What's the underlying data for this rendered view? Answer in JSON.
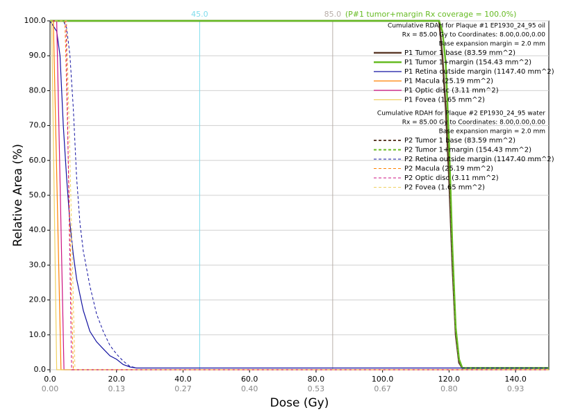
{
  "chart_data": {
    "type": "line",
    "xlabel": "Dose (Gy)",
    "ylabel": "Relative Area (%)",
    "xlim": [
      0,
      150
    ],
    "ylim": [
      0,
      100
    ],
    "xticks": [
      {
        "value": 0,
        "label": "0.0"
      },
      {
        "value": 20,
        "label": "20.0"
      },
      {
        "value": 40,
        "label": "40.0"
      },
      {
        "value": 60,
        "label": "60.0"
      },
      {
        "value": 80,
        "label": "80.0"
      },
      {
        "value": 100,
        "label": "100.0"
      },
      {
        "value": 120,
        "label": "120.0"
      },
      {
        "value": 140,
        "label": "140.0"
      }
    ],
    "x2ticks": [
      {
        "value": 0,
        "label": "0.00"
      },
      {
        "value": 20,
        "label": "0.13"
      },
      {
        "value": 40,
        "label": "0.27"
      },
      {
        "value": 60,
        "label": "0.40"
      },
      {
        "value": 80,
        "label": "0.53"
      },
      {
        "value": 100,
        "label": "0.67"
      },
      {
        "value": 120,
        "label": "0.80"
      },
      {
        "value": 140,
        "label": "0.93"
      }
    ],
    "yticks": [
      {
        "value": 0,
        "label": "0.0"
      },
      {
        "value": 10,
        "label": "10.0"
      },
      {
        "value": 20,
        "label": "20.0"
      },
      {
        "value": 30,
        "label": "30.0"
      },
      {
        "value": 40,
        "label": "40.0"
      },
      {
        "value": 50,
        "label": "50.0"
      },
      {
        "value": 60,
        "label": "60.0"
      },
      {
        "value": 70,
        "label": "70.0"
      },
      {
        "value": 80,
        "label": "80.0"
      },
      {
        "value": 90,
        "label": "90.0"
      },
      {
        "value": 100,
        "label": "100.0"
      }
    ],
    "grid": true,
    "reference_lines": [
      {
        "value": 45,
        "label": "45.0",
        "color": "#7fdcec"
      },
      {
        "value": 85,
        "label": "85.0",
        "color": "#b8aea8"
      }
    ],
    "annotation": {
      "text": "(P#1 tumor+margin Rx coverage = 100.0%)",
      "color": "#66bb22"
    },
    "legend_headers": [
      [
        "Cumulative RDAH for Plaque #1 EP1930_24_95 oil",
        "Rx = 85.00 Gy to Coordinates: 8.00,0.00,0.00",
        "Base expansion margin = 2.0 mm"
      ],
      [
        "Cumulative RDAH for Plaque #2 EP1930_24_95 water",
        "Rx = 85.00 Gy to Coordinates: 8.00,0.00,0.00",
        "Base expansion margin = 2.0 mm"
      ]
    ],
    "series": [
      {
        "name": "P1 Tumor 1 base (83.59 mm^2)",
        "color": "#5c3b2b",
        "dash": false,
        "line_width": 2.5,
        "x": [
          0,
          117,
          118,
          119,
          120,
          121,
          122,
          123,
          124,
          150
        ],
        "values": [
          100,
          100,
          90,
          75,
          55,
          30,
          10,
          2,
          0.5,
          0.5
        ]
      },
      {
        "name": "P1 Tumor 1+margin (154.43 mm^2)",
        "color": "#66bb22",
        "dash": false,
        "line_width": 2.5,
        "x": [
          0,
          117,
          118,
          119,
          120,
          121,
          122,
          123,
          124,
          150
        ],
        "values": [
          100,
          100,
          97,
          88,
          65,
          35,
          12,
          3,
          0.5,
          0.5
        ]
      },
      {
        "name": "P1 Retina outside margin (1147.40 mm^2)",
        "color": "#1010a0",
        "dash": false,
        "line_width": 1.2,
        "x": [
          0,
          2,
          3,
          4,
          5,
          6,
          7,
          8,
          10,
          12,
          14,
          16,
          18,
          20,
          22,
          24,
          26,
          150
        ],
        "values": [
          100,
          97,
          90,
          70,
          55,
          42,
          33,
          26,
          17,
          11,
          8,
          6,
          4,
          3,
          1.5,
          0.8,
          0.5,
          0.5
        ]
      },
      {
        "name": "P1 Macula (25.19 mm^2)",
        "color": "#ff8000",
        "dash": false,
        "line_width": 1.2,
        "x": [
          0,
          1,
          3.3,
          150
        ],
        "values": [
          100,
          100,
          0,
          0
        ]
      },
      {
        "name": "P1 Optic disc (3.11 mm^2)",
        "color": "#cc1080",
        "dash": false,
        "line_width": 1.2,
        "x": [
          0,
          2,
          4.2,
          150
        ],
        "values": [
          100,
          100,
          0,
          0
        ]
      },
      {
        "name": "P1 Fovea (1.65 mm^2)",
        "color": "#f0d060",
        "dash": false,
        "line_width": 1.2,
        "x": [
          0,
          0.5,
          2,
          150
        ],
        "values": [
          100,
          100,
          0,
          0
        ]
      },
      {
        "name": "P2 Tumor 1 base (83.59 mm^2)",
        "color": "#5c3b2b",
        "dash": true,
        "line_width": 2,
        "x": [
          0,
          117,
          118,
          119,
          120,
          121,
          122,
          123,
          124,
          150
        ],
        "values": [
          100,
          100,
          90,
          75,
          55,
          30,
          10,
          2,
          0.5,
          0.5
        ]
      },
      {
        "name": "P2 Tumor 1+margin (154.43 mm^2)",
        "color": "#66bb22",
        "dash": true,
        "line_width": 2,
        "x": [
          0,
          117,
          118,
          119,
          120,
          121,
          122,
          123,
          124,
          150
        ],
        "values": [
          100,
          100,
          97,
          88,
          65,
          35,
          12,
          3,
          0.5,
          0.5
        ]
      },
      {
        "name": "P2 Retina outside margin (1147.40 mm^2)",
        "color": "#1010a0",
        "dash": true,
        "line_width": 1,
        "x": [
          0,
          4,
          5,
          6,
          7,
          8,
          9,
          10,
          12,
          14,
          16,
          18,
          20,
          22,
          24,
          26,
          150
        ],
        "values": [
          100,
          100,
          98,
          90,
          75,
          55,
          42,
          34,
          24,
          16,
          11,
          7,
          4.5,
          2.5,
          1,
          0.5,
          0.5
        ]
      },
      {
        "name": "P2 Macula (25.19 mm^2)",
        "color": "#ff8000",
        "dash": true,
        "line_width": 1,
        "x": [
          0,
          4.5,
          7,
          150
        ],
        "values": [
          100,
          100,
          0,
          0
        ]
      },
      {
        "name": "P2 Optic disc (3.11 mm^2)",
        "color": "#cc1080",
        "dash": true,
        "line_width": 1,
        "x": [
          0,
          4.8,
          6.5,
          150
        ],
        "values": [
          100,
          100,
          0,
          0
        ]
      },
      {
        "name": "P2 Fovea (1.65 mm^2)",
        "color": "#f0d060",
        "dash": true,
        "line_width": 1,
        "x": [
          0,
          5,
          7.5,
          150
        ],
        "values": [
          100,
          100,
          0,
          0
        ]
      }
    ]
  }
}
